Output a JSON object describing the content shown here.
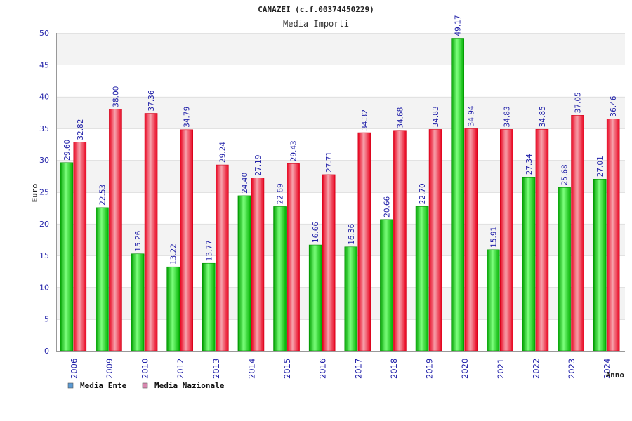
{
  "chart_data": {
    "type": "bar",
    "title": "CANAZEI (c.f.00374450229)",
    "subtitle": "Media Importi",
    "ylabel": "Euro",
    "xlabel": "Anno",
    "ylim": [
      0,
      50
    ],
    "yticks": [
      0,
      5,
      10,
      15,
      20,
      25,
      30,
      35,
      40,
      45,
      50
    ],
    "grid": true,
    "legend_position": "bottom-left",
    "categories": [
      "2006",
      "2009",
      "2010",
      "2012",
      "2013",
      "2014",
      "2015",
      "2016",
      "2017",
      "2018",
      "2019",
      "2020",
      "2021",
      "2022",
      "2023",
      "2024"
    ],
    "series": [
      {
        "name": "Media Ente",
        "color": "#00c000",
        "values": [
          29.6,
          22.53,
          15.26,
          13.22,
          13.77,
          24.4,
          22.69,
          16.66,
          16.36,
          20.66,
          22.7,
          49.17,
          15.91,
          27.34,
          25.68,
          27.01
        ],
        "labels": [
          "29.60",
          "22.53",
          "15.26",
          "13.22",
          "13.77",
          "24.40",
          "22.69",
          "16.66",
          "16.36",
          "20.66",
          "22.70",
          "49.17",
          "15.91",
          "27.34",
          "25.68",
          "27.01"
        ]
      },
      {
        "name": "Media Nazionale",
        "color": "#e8001c",
        "values": [
          32.82,
          38.0,
          37.36,
          34.79,
          29.24,
          27.19,
          29.43,
          27.71,
          34.32,
          34.68,
          34.83,
          34.94,
          34.83,
          34.85,
          37.05,
          36.46
        ],
        "labels": [
          "32.82",
          "38.00",
          "37.36",
          "34.79",
          "29.24",
          "27.19",
          "29.43",
          "27.71",
          "34.32",
          "34.68",
          "34.83",
          "34.94",
          "34.83",
          "34.85",
          "37.05",
          "36.46"
        ]
      }
    ],
    "legend": [
      {
        "label": "Media Ente",
        "swatch_color": "#5b9bd5"
      },
      {
        "label": "Media Nazionale",
        "swatch_color": "#d987b0"
      }
    ]
  }
}
